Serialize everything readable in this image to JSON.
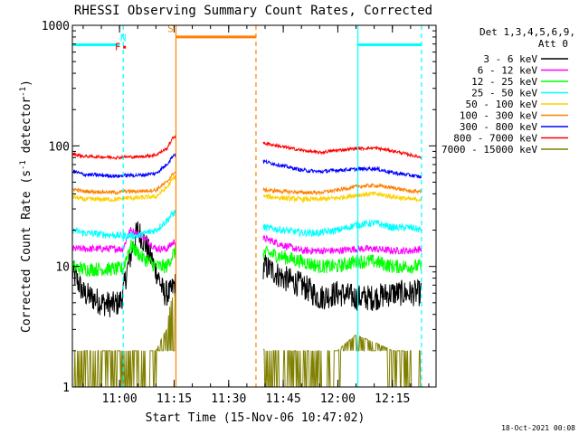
{
  "chart_data": {
    "type": "line",
    "title": "RHESSI Observing Summary Count Rates, Corrected",
    "xlabel": "Start Time (15-Nov-06 10:47:02)",
    "ylabel": "Corrected Count Rate (s⁻¹ detector⁻¹)",
    "ylabel_main": "Corrected Count Rate (s",
    "ylabel_mid": " detector",
    "ylabel_end": ")",
    "ylabel_sup": "-1",
    "y_scale": "log",
    "ylim": [
      1,
      1000
    ],
    "xlim": [
      "10:47:02",
      "12:27:00"
    ],
    "x_ticks": [
      "11:00",
      "11:15",
      "11:30",
      "11:45",
      "12:00",
      "12:15"
    ],
    "y_ticks": [
      "1",
      "10",
      "100",
      "1000"
    ],
    "legend": {
      "title": "Det 1,3,4,5,6,9,",
      "subtitle": "Att 0",
      "placement": "right"
    },
    "flags": [
      {
        "label": "F",
        "color": "#ff0000",
        "time": "10:59:30",
        "level": 620
      },
      {
        "label": "N",
        "color": "#00ffff",
        "time": "11:01:00",
        "level": 740
      },
      {
        "label": "S",
        "color": "#ff8000",
        "time": "11:14:00",
        "level": 880
      }
    ],
    "flag_bars": [
      {
        "color": "#00ffff",
        "start": "10:47:02",
        "end": "11:00:00",
        "level": 690
      },
      {
        "color": "#ff8000",
        "start": "11:15:30",
        "end": "11:37:30",
        "level": 800
      },
      {
        "color": "#00ffff",
        "start": "12:05:30",
        "end": "12:23:00",
        "level": 690
      }
    ],
    "markers": [
      {
        "time": "10:47:02",
        "color": "#00ffff",
        "style": "dashed"
      },
      {
        "time": "11:01:00",
        "color": "#00ffff",
        "style": "dashed"
      },
      {
        "time": "11:15:30",
        "color": "#ff8000",
        "style": "solid"
      },
      {
        "time": "11:37:30",
        "color": "#ff8000",
        "style": "dashed"
      },
      {
        "time": "12:05:30",
        "color": "#00ffff",
        "style": "solid"
      },
      {
        "time": "12:23:00",
        "color": "#00ffff",
        "style": "dashed"
      }
    ],
    "gap": {
      "start": "11:15:30",
      "end": "11:39:30"
    },
    "series": [
      {
        "name": "3 - 6 keV",
        "color": "#000000",
        "t": [
          "10:47",
          "10:50",
          "10:55",
          "10:58",
          "11:00",
          "11:01",
          "11:03",
          "11:05",
          "11:09",
          "11:12",
          "11:14",
          "11:15",
          "11:40",
          "11:45",
          "11:50",
          "11:55",
          "12:00",
          "12:05",
          "12:10",
          "12:15",
          "12:20",
          "12:23"
        ],
        "v": [
          9,
          6,
          5,
          4.8,
          5,
          6,
          12,
          20,
          11,
          6,
          6,
          7,
          10,
          8,
          7,
          5.5,
          6,
          5.5,
          5.5,
          6,
          6,
          6
        ],
        "noise": 0.22
      },
      {
        "name": "6 - 12 keV",
        "color": "#ff00ff",
        "t": [
          "10:47",
          "10:50",
          "11:00",
          "11:01",
          "11:03",
          "11:06",
          "11:10",
          "11:13",
          "11:15",
          "11:40",
          "11:45",
          "11:50",
          "11:55",
          "12:00",
          "12:05",
          "12:10",
          "12:15",
          "12:20",
          "12:23"
        ],
        "v": [
          14,
          14,
          14,
          14,
          20,
          18,
          14,
          14,
          16,
          17,
          15,
          13.5,
          13.5,
          13.5,
          14,
          14,
          13.5,
          13.5,
          14
        ],
        "noise": 0.06
      },
      {
        "name": "12 - 25 keV",
        "color": "#00ff00",
        "t": [
          "10:47",
          "10:50",
          "11:00",
          "11:01",
          "11:03",
          "11:06",
          "11:10",
          "11:13",
          "11:15",
          "11:40",
          "11:45",
          "11:50",
          "11:55",
          "12:00",
          "12:05",
          "12:10",
          "12:15",
          "12:20",
          "12:23"
        ],
        "v": [
          10,
          9.5,
          9.5,
          9.5,
          15,
          12,
          10,
          10,
          13,
          13,
          12,
          11,
          10,
          10,
          11,
          11,
          10,
          10,
          10
        ],
        "noise": 0.12
      },
      {
        "name": "25 - 50 keV",
        "color": "#00ffff",
        "t": [
          "10:47",
          "10:50",
          "11:00",
          "11:01",
          "11:05",
          "11:10",
          "11:13",
          "11:15",
          "11:40",
          "11:45",
          "11:50",
          "11:55",
          "12:00",
          "12:05",
          "12:10",
          "12:15",
          "12:20",
          "12:23"
        ],
        "v": [
          20,
          19,
          18,
          18,
          18,
          20,
          24,
          28,
          21,
          20,
          19,
          19,
          20,
          22,
          23,
          21,
          21,
          20
        ],
        "noise": 0.06
      },
      {
        "name": "50 - 100 keV",
        "color": "#ffd000",
        "t": [
          "10:47",
          "10:50",
          "11:00",
          "11:01",
          "11:05",
          "11:10",
          "11:13",
          "11:15",
          "11:40",
          "11:45",
          "11:50",
          "11:55",
          "12:00",
          "12:05",
          "12:10",
          "12:15",
          "12:20",
          "12:23"
        ],
        "v": [
          38,
          36,
          36,
          37,
          37,
          38,
          45,
          55,
          38,
          37,
          36,
          36,
          37,
          39,
          40,
          38,
          36,
          36
        ],
        "noise": 0.04
      },
      {
        "name": "100 - 300 keV",
        "color": "#ff8000",
        "t": [
          "10:47",
          "10:50",
          "11:00",
          "11:01",
          "11:05",
          "11:10",
          "11:13",
          "11:15",
          "11:40",
          "11:45",
          "11:50",
          "11:55",
          "12:00",
          "12:05",
          "12:10",
          "12:15",
          "12:20",
          "12:23"
        ],
        "v": [
          44,
          42,
          41,
          42,
          42,
          43,
          50,
          60,
          43,
          42,
          41,
          41,
          43,
          46,
          47,
          45,
          42,
          42
        ],
        "noise": 0.03
      },
      {
        "name": "300 - 800 keV",
        "color": "#0000ff",
        "t": [
          "10:47",
          "10:50",
          "11:00",
          "11:01",
          "11:05",
          "11:10",
          "11:13",
          "11:15",
          "11:40",
          "11:45",
          "11:50",
          "11:55",
          "12:00",
          "12:05",
          "12:10",
          "12:15",
          "12:20",
          "12:23"
        ],
        "v": [
          62,
          58,
          56,
          57,
          57,
          59,
          70,
          85,
          74,
          68,
          63,
          61,
          63,
          64,
          65,
          60,
          57,
          55
        ],
        "noise": 0.03
      },
      {
        "name": "800 - 7000 keV",
        "color": "#ff0000",
        "t": [
          "10:47",
          "10:50",
          "11:00",
          "11:01",
          "11:05",
          "11:10",
          "11:13",
          "11:15",
          "11:40",
          "11:45",
          "11:50",
          "11:55",
          "12:00",
          "12:05",
          "12:10",
          "12:15",
          "12:20",
          "12:23"
        ],
        "v": [
          86,
          82,
          80,
          81,
          81,
          84,
          95,
          120,
          105,
          98,
          92,
          88,
          92,
          95,
          96,
          91,
          84,
          80
        ],
        "noise": 0.025
      },
      {
        "name": "7000 - 15000 keV",
        "color": "#808000",
        "t": [
          "10:47",
          "11:00",
          "11:10",
          "11:13",
          "11:14",
          "11:15",
          "11:40",
          "12:00",
          "12:05",
          "12:15",
          "12:23"
        ],
        "v": [
          2,
          2,
          2,
          3,
          5,
          6,
          2,
          2,
          2.7,
          2,
          2
        ],
        "noise": 0
      }
    ]
  },
  "timestamp": "18-Oct-2021 00:08"
}
